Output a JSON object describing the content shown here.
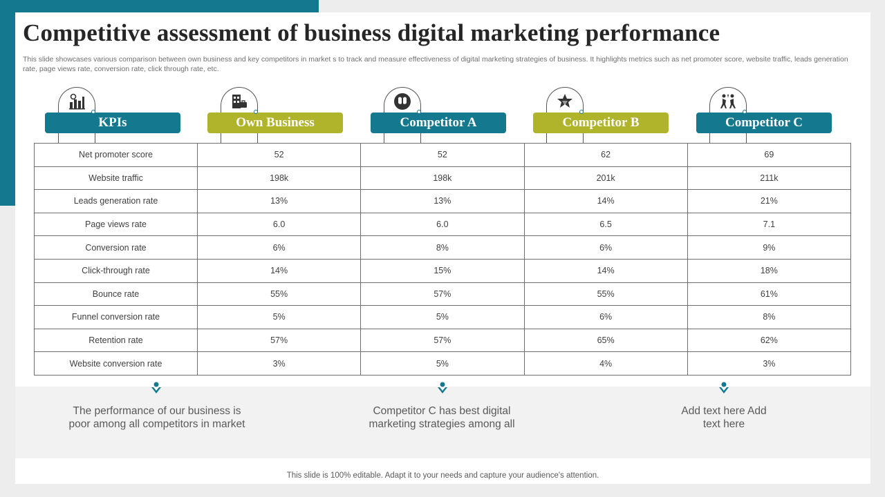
{
  "title": "Competitive assessment of business digital marketing performance",
  "subtitle": "This slide showcases various comparison between own business and key competitors in market s to track and measure effectiveness of digital marketing strategies of business. It highlights metrics such as net promoter score, website traffic, leads generation rate, page views rate, conversion rate, click through rate,  etc.",
  "columns": [
    {
      "label": "KPIs",
      "icon": "bar-chart-icon"
    },
    {
      "label": "Own Business",
      "icon": "office-building-icon"
    },
    {
      "label": "Competitor A",
      "icon": "chess-knight-icon"
    },
    {
      "label": "Competitor B",
      "icon": "star-badge-icon"
    },
    {
      "label": "Competitor C",
      "icon": "competing-people-icon"
    }
  ],
  "rows": [
    [
      "Net promoter  score",
      "52",
      "52",
      "62",
      "69"
    ],
    [
      "Website traffic",
      "198k",
      "198k",
      "201k",
      "211k"
    ],
    [
      "Leads generation rate",
      "13%",
      "13%",
      "14%",
      "21%"
    ],
    [
      "Page views  rate",
      "6.0",
      "6.0",
      "6.5",
      "7.1"
    ],
    [
      "Conversion  rate",
      "6%",
      "8%",
      "6%",
      "9%"
    ],
    [
      "Click-through  rate",
      "14%",
      "15%",
      "14%",
      "18%"
    ],
    [
      "Bounce rate",
      "55%",
      "57%",
      "55%",
      "61%"
    ],
    [
      "Funnel conversion  rate",
      "5%",
      "5%",
      "6%",
      "8%"
    ],
    [
      "Retention rate",
      "57%",
      "57%",
      "65%",
      "62%"
    ],
    [
      "Website conversion rate",
      "3%",
      "5%",
      "4%",
      "3%"
    ]
  ],
  "notes": [
    "The performance of our business is poor among all competitors in market",
    "Competitor C has best digital marketing strategies among all",
    "Add text here Add text here"
  ],
  "footer": "This slide is 100% editable. Adapt it to your needs and capture your audience's attention.",
  "colors": {
    "teal": "#14788f",
    "olive": "#afb42a"
  }
}
